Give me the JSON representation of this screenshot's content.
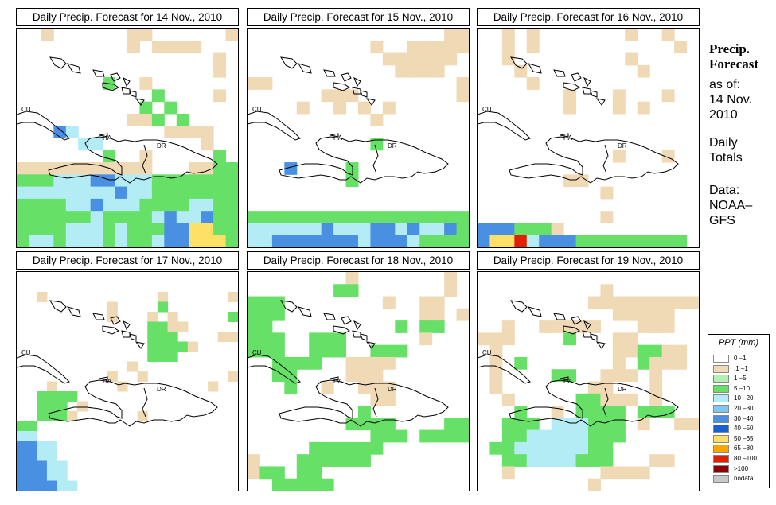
{
  "panels": [
    {
      "title": "Daily Precip. Forecast for  14 Nov., 2010",
      "labels": {
        "cu": "CU",
        "ha": "HA",
        "dr": "DR"
      }
    },
    {
      "title": "Daily Precip. Forecast for  15 Nov., 2010",
      "labels": {
        "cu": "CU",
        "ha": "HA",
        "dr": "DR"
      }
    },
    {
      "title": "Daily Precip. Forecast for  16 Nov., 2010",
      "labels": {
        "cu": "CU",
        "ha": "HA",
        "dr": "DR"
      }
    },
    {
      "title": "Daily Precip. Forecast for  17 Nov., 2010",
      "labels": {
        "cu": "CU",
        "ha": "HA",
        "dr": "DR"
      }
    },
    {
      "title": "Daily Precip. Forecast for  18 Nov., 2010",
      "labels": {
        "cu": "CU",
        "ha": "HA",
        "dr": "DR"
      }
    },
    {
      "title": "Daily Precip. Forecast for  19 Nov., 2010",
      "labels": {
        "cu": "CU",
        "ha": "HA",
        "dr": "DR"
      }
    }
  ],
  "sidebar": {
    "title_line1": "Precip.",
    "title_line2": "Forecast",
    "as_of": "as of:",
    "date_line1": "14 Nov.",
    "date_line2": "2010",
    "totals_line1": "Daily",
    "totals_line2": "Totals",
    "data_line1": "Data:",
    "data_line2": "NOAA–",
    "data_line3": "GFS"
  },
  "legend": {
    "title": "PPT (mm)",
    "items": [
      {
        "label": "0 –1",
        "color": "#ffffff"
      },
      {
        "label": ".1 –1",
        "color": "#f0d9b5"
      },
      {
        "label": "1 –5",
        "color": "#b3f0b3"
      },
      {
        "label": "5 –10",
        "color": "#66e066"
      },
      {
        "label": "10 –20",
        "color": "#b3ecf5"
      },
      {
        "label": "20 –30",
        "color": "#80c8f0"
      },
      {
        "label": "30 –40",
        "color": "#4a90e2"
      },
      {
        "label": "40 –50",
        "color": "#1a5fd0"
      },
      {
        "label": "50 –65",
        "color": "#ffe066"
      },
      {
        "label": "65 –80",
        "color": "#ffa500"
      },
      {
        "label": "80 –100",
        "color": "#e02000"
      },
      {
        "label": ">100",
        "color": "#8b0000"
      },
      {
        "label": "nodata",
        "color": "#c8c8c8"
      }
    ]
  },
  "grids": [
    "..o......oo......o\n.........o.oooo...\n................o.\n................o.\n.......g..o.......\n...........g....o.\n..........g.g.....\n.........oog.g....\n...bc.......oooo..\n.....cc........o..\n.......g..o.....g.\nooooooooooo...oogg\ngggcccbbcccggggggg\nccccccccbccggggggg\nggggccbcccggggccgg\nggggggcggggcbccbgg\nggggcccgcgggbbyygg\ngccgcccgcggcbbyyyg",
    "................oo\n..........o..ooooo\n...........oooooo.\n............oooo..\noo...............o\n......ooo........o\n....o..o.o.o......\n..........o.......\n..................\n..........g.......\n..................\n...b....g.........\n........g.........\n..................\n..................\ngggggggggggggggggg\nccccccbcccbbcbccbg\nccbbbbbbbcbbbcgggg",
    "..o.o.......o..o..\n..o.o...........o.\n..o.........o.....\n...o.........o....\n....o.............\n.......o...o...o..\n.......o...o.o....\n..................\n..................\n..................\n...........o...o..\n..................\n.......oo.........\n..........o.......\n..................\n..........o.......\nbbbgggo...........\nbyyrcbbbggggggggg.",
    "......................\n......................\n..o...........o......o\n.........o....g.......\n.........o...o.o.....g\n.............ggoo.....\n.............ggg....oo\n.............ggggo....\n.............ggg......\n...........o..........\n.........o..o........o\n...o......o........o..\n..gggg................\n..ggg.o...............\n..gggo......o.........\ngg....................\ncc....................\nbbcc..................\nbbcc..................\nbbbcc.................\nbbbcc.................\nbbbbcc................",
    "........o.......o.\n.......gg.......o.\nggg........o..oo..\nggg...........oo.o\ngg..........g.gg..\nggg..ggg......o...\nggg..ggg..ggg.....\n..gggg..oooo......\n..gg....ooo.......\n...g..o..ooo......\n..........oo......\n.........g........\n........gggg....gg\n..........ggg.gggg\n.....gggggg.......\no...gggggg........\nogg.gg............\n..ggggg...........",
    "..................\n..........o.......\n.........ooooooooo\n...........ooooo..\n..o..ooooo...ooo..\nooo....g...oo.....\n.o.........ooggoo.\n.o.g.......o.gooo.\n.o....gg..ooo.o...\n.o.......oo...o...\n..o.....ggooo.o...\n...g..o.gggg.ggg..\n..ggg.cccggg.o..oo\n..ggcccccggg......\n.ggccccccgg.......\n..ggccccggg...oo..\n..o.......oooo....\n.........o........"
  ]
}
